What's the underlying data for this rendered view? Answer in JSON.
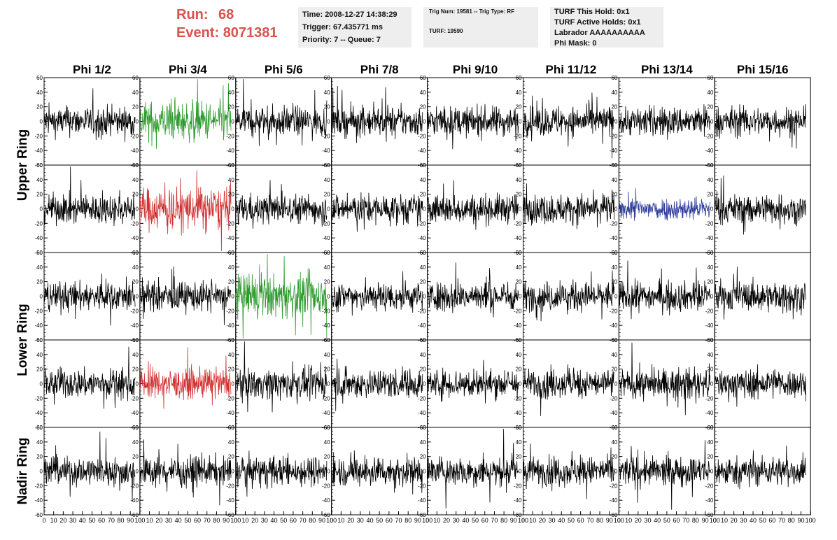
{
  "header": {
    "run_label": "Run:",
    "run_value": "68",
    "event_label": "Event:",
    "event_value": "8071381"
  },
  "info": {
    "time": "Time: 2008-12-27 14:38:29",
    "trigger": "Trigger: 67.435771 ms",
    "priority": "Priority: 7 -- Queue: 7",
    "trig_num": "Trig Num: 19581 -- Trig Type: RF",
    "turf": "TURF: 19590",
    "turf_hold": "TURF This Hold: 0x1",
    "turf_active": "TURF Active Holds: 0x1",
    "labrador": "Labrador AAAAAAAAAA",
    "phi_mask": "Phi Mask: 0"
  },
  "chart_data": {
    "type": "line",
    "columns": [
      "Phi 1/2",
      "Phi 3/4",
      "Phi 5/6",
      "Phi 7/8",
      "Phi 9/10",
      "Phi 11/12",
      "Phi 13/14",
      "Phi 15/16"
    ],
    "rings": [
      {
        "name": "Upper Ring",
        "rows": [
          0,
          1
        ]
      },
      {
        "name": "Lower Ring",
        "rows": [
          2,
          3
        ]
      },
      {
        "name": "Nadir Ring",
        "rows": [
          4
        ]
      }
    ],
    "xlim": [
      0,
      100
    ],
    "ylim": [
      -60,
      60
    ],
    "xticks": [
      0,
      10,
      20,
      30,
      40,
      50,
      60,
      70,
      80,
      90,
      100
    ],
    "yticks": [
      60,
      40,
      20,
      0,
      -20,
      -40,
      -60
    ],
    "default_color": "#000000",
    "highlights": [
      {
        "row": 0,
        "col": 1,
        "color": "#2e9a2e",
        "amplitude": 24
      },
      {
        "row": 1,
        "col": 1,
        "color": "#d03030",
        "amplitude": 26
      },
      {
        "row": 1,
        "col": 6,
        "color": "#2e3d9a",
        "amplitude": 14
      },
      {
        "row": 2,
        "col": 2,
        "color": "#2e9a2e",
        "amplitude": 26
      },
      {
        "row": 3,
        "col": 1,
        "color": "#d03030",
        "amplitude": 18
      }
    ],
    "default_amplitude": 18,
    "samples_per_trace": 260
  }
}
